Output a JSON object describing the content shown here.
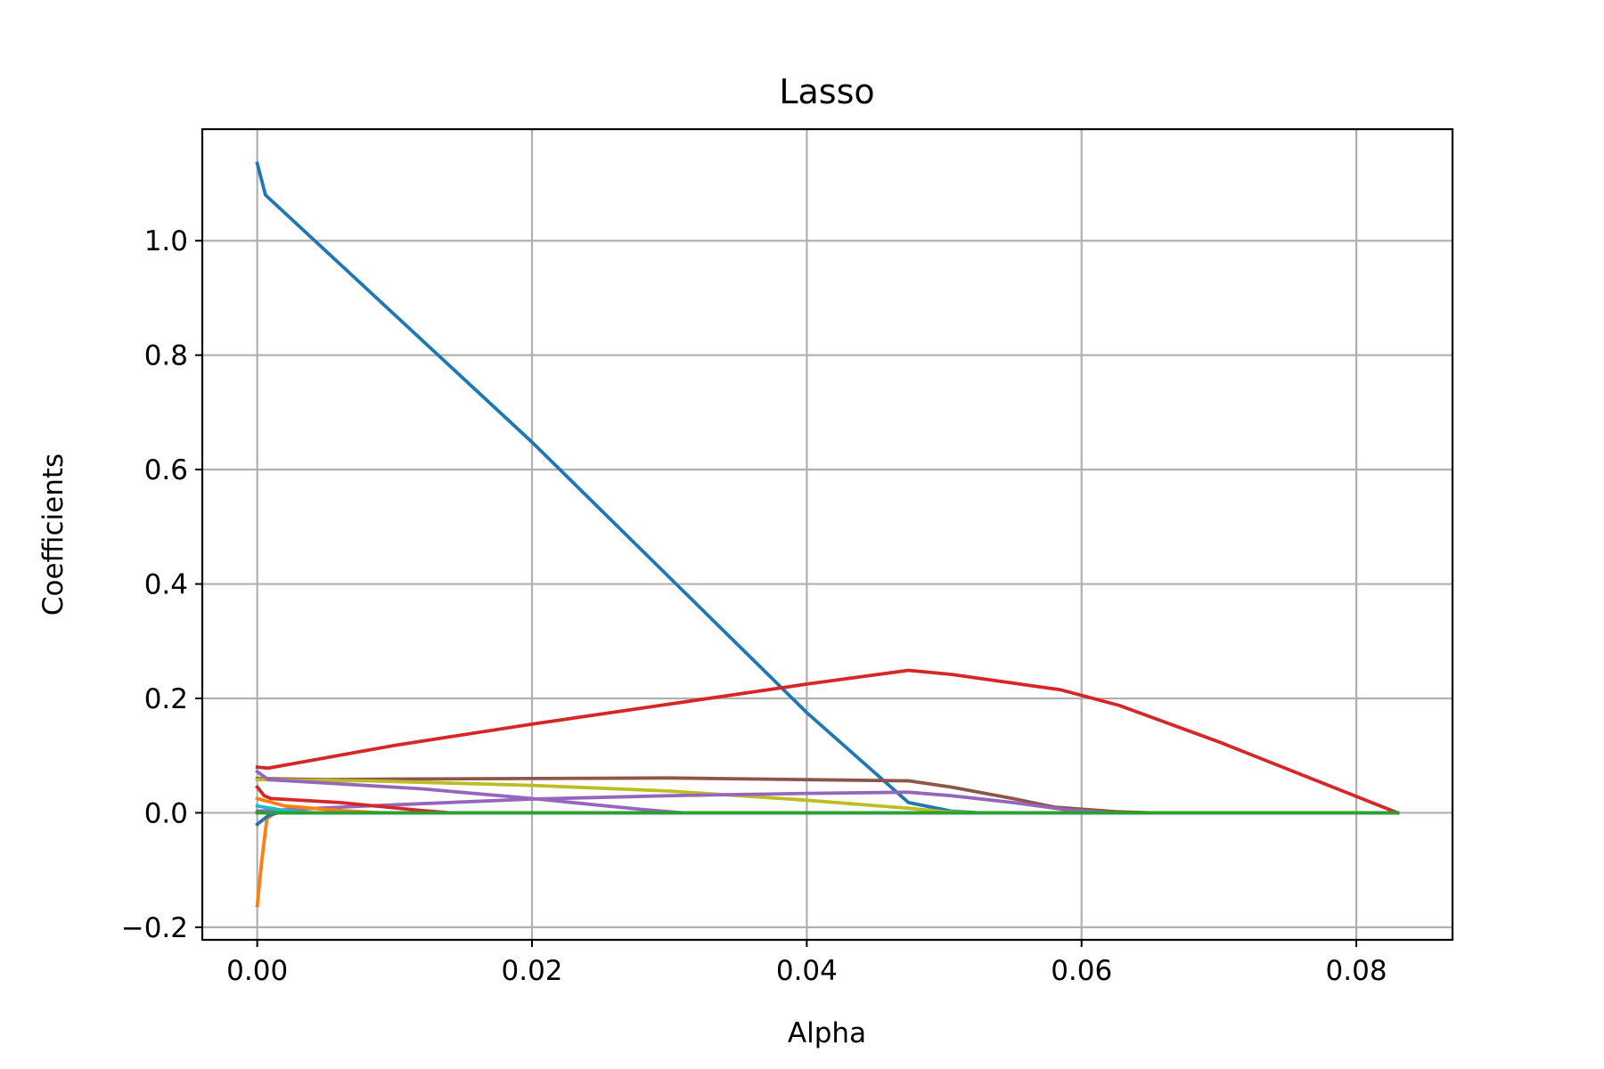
{
  "chart_data": {
    "type": "line",
    "title": "Lasso",
    "xlabel": "Alpha",
    "ylabel": "Coefficients",
    "xlim": [
      -0.004,
      0.087
    ],
    "ylim": [
      -0.222,
      1.195
    ],
    "xticks": [
      0.0,
      0.02,
      0.04,
      0.06,
      0.08
    ],
    "xtick_labels": [
      "0.00",
      "0.02",
      "0.04",
      "0.06",
      "0.08"
    ],
    "yticks": [
      -0.2,
      0.0,
      0.2,
      0.4,
      0.6,
      0.8,
      1.0
    ],
    "ytick_labels": [
      "−0.2",
      "0.0",
      "0.2",
      "0.4",
      "0.6",
      "0.8",
      "1.0"
    ],
    "grid": true,
    "legend": false,
    "series": [
      {
        "color": "#2ca02c",
        "points": [
          [
            0.0,
            0.0
          ],
          [
            0.083,
            0.0
          ]
        ]
      },
      {
        "color": "#ff7f0e",
        "points": [
          [
            0.0,
            -0.162
          ],
          [
            0.0003,
            -0.09
          ],
          [
            0.0007,
            -0.01
          ],
          [
            0.0013,
            0.0
          ],
          [
            0.083,
            0.0
          ]
        ]
      },
      {
        "color": "#1f77b4",
        "points": [
          [
            0.0,
            1.135
          ],
          [
            0.0006,
            1.08
          ],
          [
            0.02,
            0.648
          ],
          [
            0.04,
            0.175
          ],
          [
            0.0474,
            0.018
          ],
          [
            0.0505,
            0.003
          ],
          [
            0.0525,
            0.0
          ],
          [
            0.083,
            0.0
          ]
        ]
      },
      {
        "color": "#d62728",
        "points": [
          [
            0.0,
            0.08
          ],
          [
            0.0008,
            0.078
          ],
          [
            0.01,
            0.118
          ],
          [
            0.02,
            0.155
          ],
          [
            0.03,
            0.19
          ],
          [
            0.04,
            0.225
          ],
          [
            0.0474,
            0.249
          ],
          [
            0.0505,
            0.242
          ],
          [
            0.0585,
            0.215
          ],
          [
            0.0627,
            0.188
          ],
          [
            0.07,
            0.124
          ],
          [
            0.083,
            0.0
          ]
        ]
      },
      {
        "color": "#8c564b",
        "points": [
          [
            0.0,
            0.06
          ],
          [
            0.005,
            0.058
          ],
          [
            0.01,
            0.059
          ],
          [
            0.02,
            0.06
          ],
          [
            0.03,
            0.061
          ],
          [
            0.04,
            0.058
          ],
          [
            0.0474,
            0.056
          ],
          [
            0.0505,
            0.045
          ],
          [
            0.055,
            0.025
          ],
          [
            0.058,
            0.01
          ],
          [
            0.0625,
            0.002
          ],
          [
            0.065,
            0.0
          ],
          [
            0.083,
            0.0
          ]
        ]
      },
      {
        "color": "#bcbd22",
        "points": [
          [
            0.0,
            0.058
          ],
          [
            0.008,
            0.056
          ],
          [
            0.02,
            0.048
          ],
          [
            0.03,
            0.038
          ],
          [
            0.04,
            0.022
          ],
          [
            0.0474,
            0.008
          ],
          [
            0.05,
            0.002
          ],
          [
            0.052,
            0.0
          ],
          [
            0.083,
            0.0
          ]
        ]
      },
      {
        "color": "#9467bd",
        "points": [
          [
            0.0,
            0.072
          ],
          [
            0.0008,
            0.058
          ],
          [
            0.005,
            0.052
          ],
          [
            0.012,
            0.042
          ],
          [
            0.02,
            0.025
          ],
          [
            0.028,
            0.006
          ],
          [
            0.031,
            0.0
          ],
          [
            0.083,
            0.0
          ]
        ]
      },
      {
        "color": "#9467bd",
        "points": [
          [
            0.0,
            0.003
          ],
          [
            0.008,
            0.012
          ],
          [
            0.02,
            0.024
          ],
          [
            0.03,
            0.03
          ],
          [
            0.04,
            0.034
          ],
          [
            0.0474,
            0.036
          ],
          [
            0.0505,
            0.03
          ],
          [
            0.055,
            0.018
          ],
          [
            0.059,
            0.005
          ],
          [
            0.062,
            0.0
          ],
          [
            0.083,
            0.0
          ]
        ]
      },
      {
        "color": "#d62728",
        "points": [
          [
            0.0,
            0.045
          ],
          [
            0.0005,
            0.03
          ],
          [
            0.001,
            0.025
          ],
          [
            0.006,
            0.018
          ],
          [
            0.012,
            0.004
          ],
          [
            0.014,
            0.0
          ],
          [
            0.083,
            0.0
          ]
        ]
      },
      {
        "color": "#ff7f0e",
        "points": [
          [
            0.0,
            0.025
          ],
          [
            0.002,
            0.012
          ],
          [
            0.006,
            0.004
          ],
          [
            0.009,
            0.0
          ],
          [
            0.083,
            0.0
          ]
        ]
      },
      {
        "color": "#17becf",
        "points": [
          [
            0.0,
            0.012
          ],
          [
            0.002,
            0.004
          ],
          [
            0.004,
            0.0
          ],
          [
            0.083,
            0.0
          ]
        ]
      },
      {
        "color": "#1f77b4",
        "points": [
          [
            0.0,
            -0.02
          ],
          [
            0.0008,
            -0.005
          ],
          [
            0.0015,
            0.0
          ],
          [
            0.083,
            0.0
          ]
        ]
      },
      {
        "color": "#2ca02c",
        "points": [
          [
            0.0,
            0.0
          ],
          [
            0.083,
            0.0
          ]
        ]
      }
    ]
  }
}
